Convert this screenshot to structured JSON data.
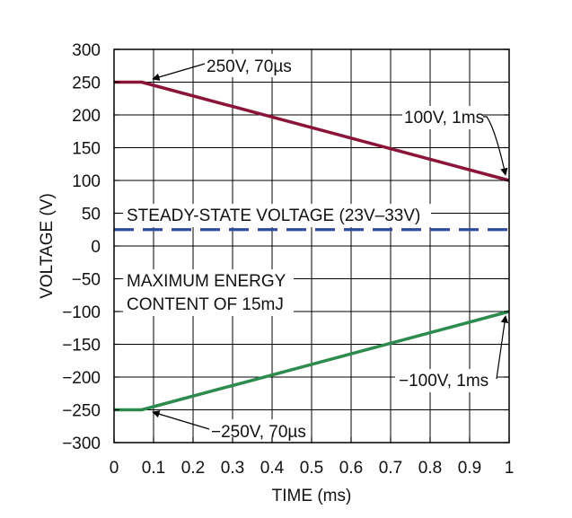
{
  "chart_data": {
    "type": "line",
    "title": "",
    "xlabel": "TIME (ms)",
    "ylabel": "VOLTAGE (V)",
    "xlim": [
      0,
      1
    ],
    "ylim": [
      -300,
      300
    ],
    "xticks": [
      0,
      0.1,
      0.2,
      0.3,
      0.4,
      0.5,
      0.6,
      0.7,
      0.8,
      0.9,
      1
    ],
    "xtick_labels": [
      "0",
      "0.1",
      "0.2",
      "0.3",
      "0.4",
      "0.5",
      "0.6",
      "0.7",
      "0.8",
      "0.9",
      "1"
    ],
    "yticks": [
      300,
      250,
      200,
      150,
      100,
      50,
      0,
      -50,
      -100,
      -150,
      -200,
      -250,
      -300
    ],
    "ytick_labels": [
      "300",
      "250",
      "200",
      "150",
      "100",
      "50",
      "0",
      "−50",
      "−100",
      "−150",
      "−200",
      "−250",
      "−300"
    ],
    "grid": true,
    "series": [
      {
        "name": "positive-transient",
        "color": "#8b1538",
        "style": "solid",
        "x": [
          0,
          0.07,
          1
        ],
        "y": [
          250,
          250,
          100
        ]
      },
      {
        "name": "steady-state",
        "color": "#2e4a9a",
        "style": "dashed",
        "x": [
          0,
          1
        ],
        "y": [
          25,
          25
        ]
      },
      {
        "name": "negative-transient",
        "color": "#2e8b4e",
        "style": "solid",
        "x": [
          0,
          0.07,
          1
        ],
        "y": [
          -250,
          -250,
          -100
        ]
      }
    ],
    "annotations": {
      "pos_start": "250V, 70µs",
      "pos_end": "100V, 1ms",
      "steady": "STEADY-STATE VOLTAGE (23V–33V)",
      "energy_line1": "MAXIMUM ENERGY",
      "energy_line2": "CONTENT OF 15mJ",
      "neg_end": "−100V, 1ms",
      "neg_start": "−250V, 70µs"
    }
  }
}
